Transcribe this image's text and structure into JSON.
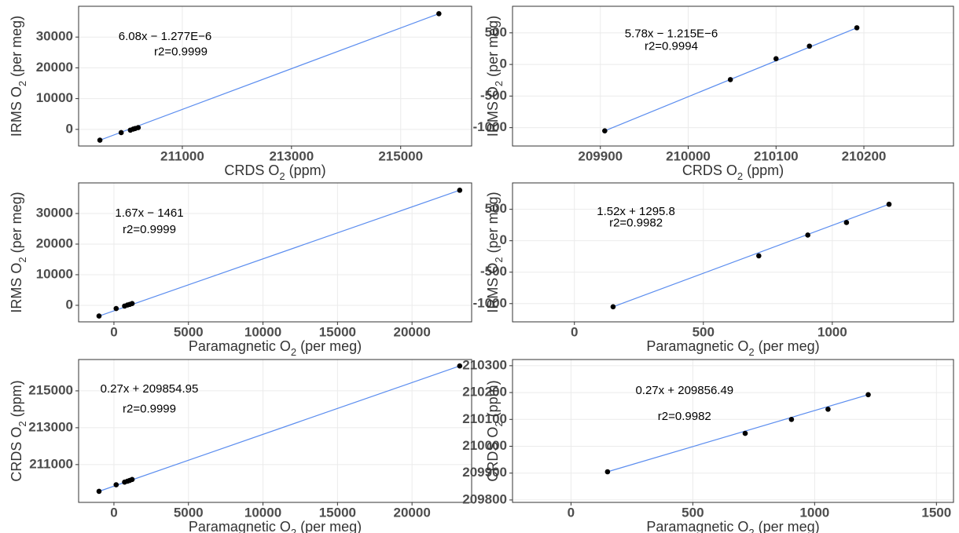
{
  "chart_data": [
    {
      "type": "scatter",
      "xlabel": [
        "CRDS O",
        "2",
        " (ppm)"
      ],
      "ylabel": [
        "IRMS O",
        "2",
        " (per meg)"
      ],
      "x": [
        209490,
        209880,
        210048,
        210100,
        210138,
        210192,
        215700
      ],
      "y": [
        -3500,
        -1050,
        -240,
        90,
        290,
        580,
        37600
      ],
      "point_color": "#000000",
      "fit": {
        "x": [
          209490,
          215700
        ],
        "y": [
          -3500,
          37600
        ],
        "color": "#5b8def"
      },
      "annotations": [
        "6.08x − 1.277E−6",
        "r2=0.9999"
      ],
      "xlim": [
        209100,
        216300
      ],
      "ylim": [
        -5400,
        40000
      ],
      "xticks": [
        211000,
        213000,
        215000
      ],
      "yticks": [
        0,
        10000,
        20000,
        30000
      ],
      "grid": true
    },
    {
      "type": "scatter",
      "xlabel": [
        "CRDS O",
        "2",
        " (ppm)"
      ],
      "ylabel": [
        "IRMS O",
        "2",
        " (per meg)"
      ],
      "x": [
        209905,
        210048,
        210100,
        210138,
        210192
      ],
      "y": [
        -1050,
        -240,
        90,
        290,
        580
      ],
      "point_color": "#000000",
      "fit": {
        "x": [
          209905,
          210192
        ],
        "y": [
          -1050,
          580
        ],
        "color": "#5b8def"
      },
      "annotations": [
        "5.78x − 1.215E−6",
        "r2=0.9994"
      ],
      "xlim": [
        209800,
        210302
      ],
      "ylim": [
        -1290,
        920
      ],
      "xticks": [
        209900,
        210000,
        210100,
        210200
      ],
      "yticks": [
        -1000,
        -500,
        0,
        500
      ],
      "grid": true
    },
    {
      "type": "scatter",
      "xlabel": [
        "Paramagnetic O",
        "2",
        " (per meg)"
      ],
      "ylabel": [
        "IRMS O",
        "2",
        " (per meg)"
      ],
      "x": [
        -1000,
        150,
        715,
        905,
        1055,
        1220,
        23200
      ],
      "y": [
        -3500,
        -1050,
        -240,
        90,
        290,
        580,
        37600
      ],
      "point_color": "#000000",
      "fit": {
        "x": [
          -1000,
          23200
        ],
        "y": [
          -3500,
          37600
        ],
        "color": "#5b8def"
      },
      "annotations": [
        "1.67x − 1461",
        "r2=0.9999"
      ],
      "xlim": [
        -2370,
        24000
      ],
      "ylim": [
        -5400,
        40000
      ],
      "xticks": [
        0,
        5000,
        10000,
        15000,
        20000
      ],
      "yticks": [
        0,
        10000,
        20000,
        30000
      ],
      "grid": true
    },
    {
      "type": "scatter",
      "xlabel": [
        "Paramagnetic O",
        "2",
        " (per meg)"
      ],
      "ylabel": [
        "IRMS O",
        "2",
        " (per meg)"
      ],
      "x": [
        150,
        715,
        905,
        1055,
        1220
      ],
      "y": [
        -1050,
        -240,
        90,
        290,
        580
      ],
      "point_color": "#000000",
      "fit": {
        "x": [
          150,
          1220
        ],
        "y": [
          -1050,
          580
        ],
        "color": "#5b8def"
      },
      "annotations": [
        "1.52x + 1295.8",
        "r2=0.9982"
      ],
      "xlim": [
        -240,
        1470
      ],
      "ylim": [
        -1290,
        920
      ],
      "xticks": [
        0,
        500,
        1000
      ],
      "yticks": [
        -1000,
        -500,
        0,
        500
      ],
      "grid": true
    },
    {
      "type": "scatter",
      "xlabel": [
        "Paramagnetic O",
        "2",
        " (per meg)"
      ],
      "ylabel": [
        "CRDS O",
        "2",
        " (ppm)"
      ],
      "x": [
        -1000,
        150,
        715,
        905,
        1055,
        1220,
        23200
      ],
      "y": [
        209550,
        209905,
        210048,
        210100,
        210138,
        210192,
        216350
      ],
      "point_color": "#000000",
      "fit": {
        "x": [
          -1000,
          23200
        ],
        "y": [
          209550,
          216350
        ],
        "color": "#5b8def"
      },
      "annotations": [
        "0.27x + 209854.95",
        "r2=0.9999"
      ],
      "xlim": [
        -2370,
        24000
      ],
      "ylim": [
        208950,
        216700
      ],
      "xticks": [
        0,
        5000,
        10000,
        15000,
        20000
      ],
      "yticks": [
        211000,
        213000,
        215000
      ],
      "grid": true
    },
    {
      "type": "scatter",
      "xlabel": [
        "Paramagnetic O",
        "2",
        " (per meg)"
      ],
      "ylabel": [
        "CRDS O",
        "2",
        " (ppm)"
      ],
      "x": [
        150,
        715,
        905,
        1055,
        1220
      ],
      "y": [
        209905,
        210048,
        210100,
        210138,
        210192
      ],
      "point_color": "#000000",
      "fit": {
        "x": [
          150,
          1220
        ],
        "y": [
          209905,
          210192
        ],
        "color": "#5b8def"
      },
      "annotations": [
        "0.27x + 209856.49",
        "r2=0.9982"
      ],
      "xlim": [
        -240,
        1570
      ],
      "ylim": [
        209791,
        210323
      ],
      "xticks": [
        0,
        500,
        1000,
        1500
      ],
      "yticks": [
        209800,
        209900,
        210000,
        210100,
        210200,
        210300
      ],
      "grid": true
    }
  ]
}
